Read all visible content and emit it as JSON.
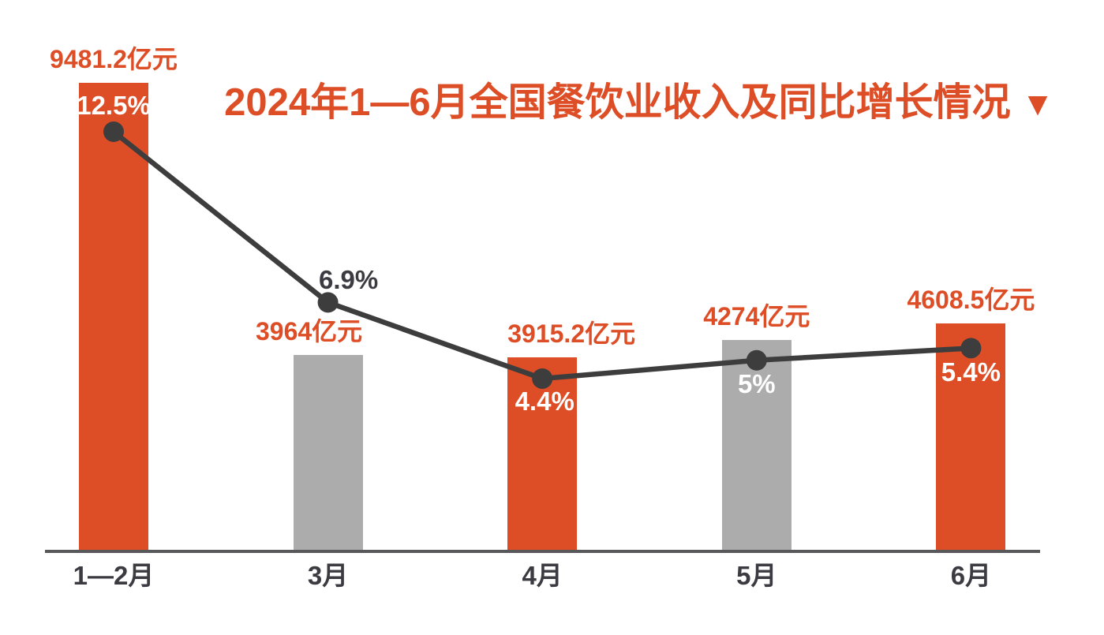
{
  "title": {
    "text": "2024年1—6月全国餐饮业收入及同比增长情况",
    "arrow": "▼",
    "color": "#DD4E27"
  },
  "colors": {
    "orange": "#DD4E27",
    "gray": "#ACACAC",
    "line": "#3D3D3D",
    "axis": "#58585B",
    "dark_text": "#3B3B41",
    "white_text": "#FFFFFF",
    "background": "#FFFFFF"
  },
  "chart_data": {
    "type": "bar",
    "title": "2024年1—6月全国餐饮业收入及同比增长情况",
    "categories": [
      "1—2月",
      "3月",
      "4月",
      "5月",
      "6月"
    ],
    "series": [
      {
        "name": "全国餐饮业收入",
        "type": "bar",
        "unit": "亿元",
        "values": [
          9481.2,
          3964,
          3915.2,
          4274,
          4608.5
        ],
        "labels": [
          "9481.2亿元",
          "3964亿元",
          "3915.2亿元",
          "4274亿元",
          "4608.5亿元"
        ],
        "colors": [
          "#DD4E27",
          "#ACACAC",
          "#DD4E27",
          "#ACACAC",
          "#DD4E27"
        ]
      },
      {
        "name": "同比增长",
        "type": "line",
        "unit": "%",
        "values": [
          12.5,
          6.9,
          4.4,
          5,
          5.4
        ],
        "labels": [
          "12.5%",
          "6.9%",
          "4.4%",
          "5%",
          "5.4%"
        ],
        "label_colors": [
          "#FFFFFF",
          "#3B3B41",
          "#FFFFFF",
          "#FFFFFF",
          "#FFFFFF"
        ],
        "line_color": "#3D3D3D"
      }
    ],
    "bar_axis_range": [
      0,
      9500
    ],
    "line_axis_range": [
      0,
      15
    ],
    "grid": false,
    "legend": false
  }
}
